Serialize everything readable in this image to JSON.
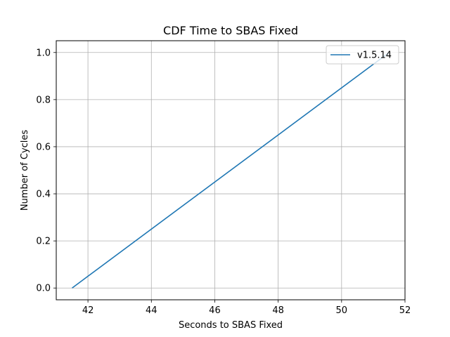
{
  "chart_data": {
    "type": "line",
    "title": "CDF Time to SBAS Fixed",
    "xlabel": "Seconds to SBAS Fixed",
    "ylabel": "Number of Cycles",
    "xlim": [
      41.0,
      52.0
    ],
    "ylim": [
      -0.05,
      1.05
    ],
    "xticks": [
      42,
      44,
      46,
      48,
      50,
      52
    ],
    "yticks": [
      0.0,
      0.2,
      0.4,
      0.6,
      0.8,
      1.0
    ],
    "xtick_labels": [
      "42",
      "44",
      "46",
      "48",
      "50",
      "52"
    ],
    "ytick_labels": [
      "0.0",
      "0.2",
      "0.4",
      "0.6",
      "0.8",
      "1.0"
    ],
    "grid": true,
    "legend_position": "top-right",
    "series": [
      {
        "name": "v1.5.14",
        "color": "#1f77b4",
        "x": [
          41.5,
          51.5
        ],
        "y": [
          0.0,
          1.0
        ]
      }
    ]
  }
}
